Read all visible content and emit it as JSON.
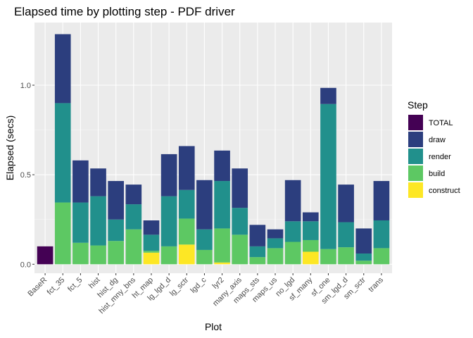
{
  "chart_data": {
    "type": "bar",
    "stacked": true,
    "title": "Elapsed time by plotting step - PDF driver",
    "xlabel": "Plot",
    "ylabel": "Elapsed (secs)",
    "ylim": [
      -0.05,
      1.35
    ],
    "yticks": [
      0.0,
      0.5,
      1.0
    ],
    "ytick_labels": [
      "0.0",
      "0.5",
      "1.0"
    ],
    "grid": true,
    "legend_title": "Step",
    "legend_position": "right",
    "categories": [
      "BaseR",
      "fct_35",
      "fct_5",
      "hist",
      "hist_dg",
      "hist_mny_bns",
      "ht_map",
      "lg_lgd_d",
      "lg_sctr",
      "lgd_c",
      "lyr2",
      "many_axis",
      "maps_sts",
      "maps_us",
      "no_lgd",
      "sf_many",
      "sf_one",
      "sm_lgd_d",
      "sm_sctr",
      "trans"
    ],
    "series": [
      {
        "name": "construct",
        "color": "#FDE725",
        "values": [
          0,
          0,
          0,
          0,
          0,
          0,
          0.065,
          0,
          0.11,
          0,
          0.01,
          0,
          0,
          0,
          0,
          0.07,
          0,
          0,
          0,
          0
        ]
      },
      {
        "name": "build",
        "color": "#5DC863",
        "values": [
          0,
          0.345,
          0.12,
          0.105,
          0.13,
          0.195,
          0.01,
          0.1,
          0.145,
          0.08,
          0.19,
          0.165,
          0.04,
          0.09,
          0.125,
          0.065,
          0.085,
          0.095,
          0.02,
          0.09
        ]
      },
      {
        "name": "render",
        "color": "#21908C",
        "values": [
          0,
          0.555,
          0.225,
          0.275,
          0.12,
          0.14,
          0.09,
          0.28,
          0.16,
          0.115,
          0.265,
          0.15,
          0.06,
          0.055,
          0.115,
          0.105,
          0.81,
          0.14,
          0.04,
          0.155
        ]
      },
      {
        "name": "draw",
        "color": "#2C3E7E",
        "values": [
          0,
          0.385,
          0.235,
          0.155,
          0.215,
          0.11,
          0.08,
          0.235,
          0.245,
          0.275,
          0.17,
          0.22,
          0.12,
          0.05,
          0.23,
          0.05,
          0.09,
          0.21,
          0.14,
          0.22
        ]
      },
      {
        "name": "TOTAL",
        "color": "#440154",
        "values": [
          0.1,
          0,
          0,
          0,
          0,
          0,
          0,
          0,
          0,
          0,
          0,
          0,
          0,
          0,
          0,
          0,
          0,
          0,
          0,
          0
        ]
      }
    ],
    "legend_order": [
      "TOTAL",
      "draw",
      "render",
      "build",
      "construct"
    ]
  }
}
